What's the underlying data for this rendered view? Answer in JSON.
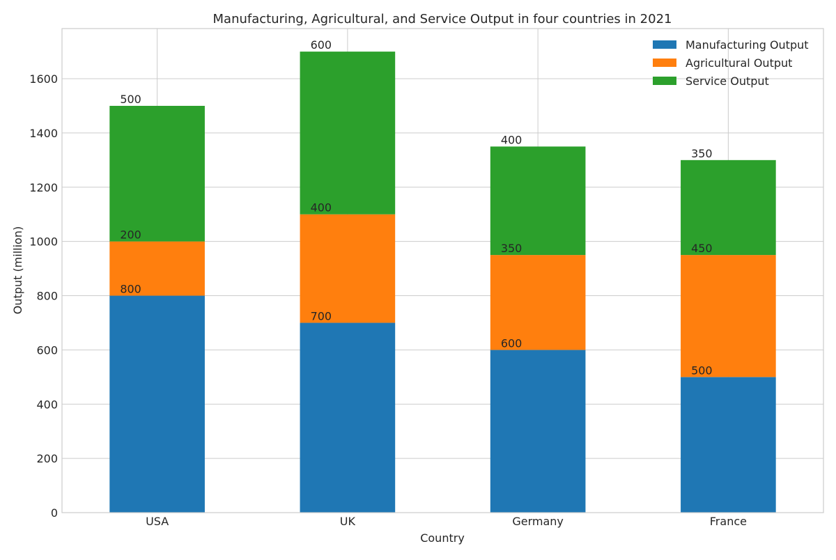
{
  "chart_data": {
    "type": "bar",
    "stacked": true,
    "title": "Manufacturing, Agricultural, and Service Output in four countries in 2021",
    "xlabel": "Country",
    "ylabel": "Output (million)",
    "categories": [
      "USA",
      "UK",
      "Germany",
      "France"
    ],
    "series": [
      {
        "name": "Manufacturing Output",
        "values": [
          800,
          700,
          600,
          500
        ],
        "color": "#1f77b4"
      },
      {
        "name": "Agricultural Output",
        "values": [
          200,
          400,
          350,
          450
        ],
        "color": "#ff7f0e"
      },
      {
        "name": "Service Output",
        "values": [
          500,
          600,
          400,
          350
        ],
        "color": "#2ca02c"
      }
    ],
    "ylim": [
      0,
      1785
    ],
    "yticks": [
      0,
      200,
      400,
      600,
      800,
      1000,
      1200,
      1400,
      1600
    ],
    "grid": true,
    "legend_position": "top-right",
    "data_labels": true
  }
}
